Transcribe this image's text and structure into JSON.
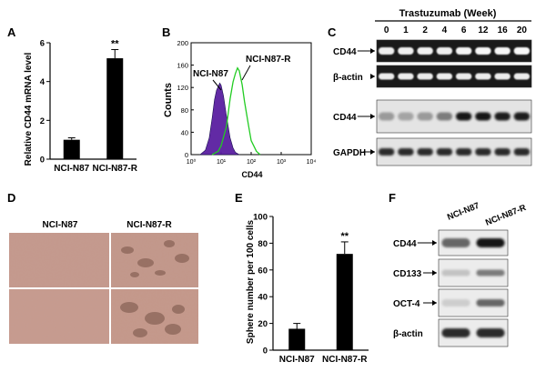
{
  "panels": {
    "A": {
      "label": "A",
      "chart_data": {
        "type": "bar",
        "categories": [
          "NCI-N87",
          "NCI-N87-R"
        ],
        "values": [
          1.0,
          5.2
        ],
        "errors": [
          0.1,
          0.45
        ],
        "ylabel": "Relative CD44 mRNA level",
        "ylim": [
          0,
          6
        ],
        "yticks": [
          "0",
          "2",
          "4",
          "6"
        ],
        "significance": [
          "",
          "**"
        ],
        "bar_colors": [
          "#000000",
          "#000000"
        ]
      }
    },
    "B": {
      "label": "B",
      "chart_data": {
        "type": "area",
        "xlabel": "CD44",
        "ylabel": "Counts",
        "xscale": "log",
        "xlim": [
          1,
          10000
        ],
        "ylim": [
          0,
          200
        ],
        "xticks": [
          "10⁰",
          "10¹",
          "10²",
          "10³",
          "10⁴"
        ],
        "yticks": [
          "0",
          "40",
          "80",
          "120",
          "160",
          "200"
        ],
        "series": [
          {
            "name": "NCI-N87",
            "color": "#5a1fa0",
            "filled": true,
            "x": [
              2,
              3,
              4,
              5,
              6,
              7,
              8,
              9,
              10,
              12,
              15,
              20,
              25,
              30,
              40
            ],
            "y": [
              0,
              8,
              30,
              65,
              98,
              115,
              122,
              128,
              124,
              105,
              70,
              30,
              12,
              4,
              0
            ]
          },
          {
            "name": "NCI-N87-R",
            "color": "#22cc22",
            "filled": false,
            "x": [
              5,
              8,
              10,
              15,
              20,
              25,
              30,
              35,
              40,
              50,
              60,
              80,
              100,
              150,
              200
            ],
            "y": [
              0,
              6,
              16,
              50,
              100,
              130,
              145,
              155,
              150,
              125,
              95,
              55,
              25,
              6,
              0
            ]
          }
        ]
      }
    },
    "C": {
      "label": "C",
      "title": "Trastuzumab (Week)",
      "weeks": [
        "0",
        "1",
        "2",
        "4",
        "6",
        "12",
        "16",
        "20"
      ],
      "rows": [
        {
          "label": "CD44",
          "style": "gel",
          "intensity": [
            0.92,
            0.92,
            0.93,
            0.92,
            0.95,
            0.96,
            0.96,
            0.97
          ]
        },
        {
          "label": "β-actin",
          "style": "gel",
          "intensity": [
            0.9,
            0.9,
            0.9,
            0.9,
            0.9,
            0.9,
            0.9,
            0.9
          ]
        },
        {
          "label": "CD44",
          "style": "blot",
          "intensity": [
            0.3,
            0.25,
            0.3,
            0.45,
            0.95,
            0.95,
            0.9,
            0.92
          ]
        },
        {
          "label": "GAPDH",
          "style": "blot",
          "intensity": [
            0.85,
            0.85,
            0.85,
            0.85,
            0.85,
            0.85,
            0.85,
            0.85
          ]
        }
      ]
    },
    "D": {
      "label": "D",
      "columns": [
        "NCI-N87",
        "NCI-N87-R"
      ]
    },
    "E": {
      "label": "E",
      "chart_data": {
        "type": "bar",
        "categories": [
          "NCI-N87",
          "NCI-N87-R"
        ],
        "values": [
          16,
          72
        ],
        "errors": [
          4,
          9
        ],
        "ylabel": "Sphere number per 100 cells",
        "ylim": [
          0,
          100
        ],
        "yticks": [
          "0",
          "20",
          "40",
          "60",
          "80",
          "100"
        ],
        "significance": [
          "",
          "**"
        ],
        "bar_colors": [
          "#000000",
          "#000000"
        ]
      }
    },
    "F": {
      "label": "F",
      "columns": [
        "NCI-N87",
        "NCI-N87-R"
      ],
      "rows": [
        {
          "label": "CD44",
          "intensity": [
            0.55,
            0.95
          ]
        },
        {
          "label": "CD133",
          "intensity": [
            0.1,
            0.45
          ]
        },
        {
          "label": "OCT-4",
          "intensity": [
            0.05,
            0.55
          ]
        },
        {
          "label": "β-actin",
          "intensity": [
            0.85,
            0.85
          ]
        }
      ]
    }
  }
}
